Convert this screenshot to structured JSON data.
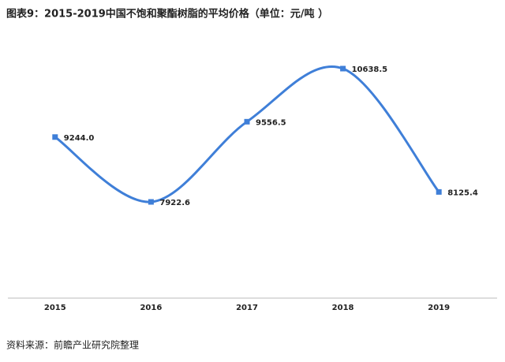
{
  "chart_data": {
    "type": "line",
    "title": "图表9：2015-2019中国不饱和聚酯树脂的平均价格（单位：元/吨 ）",
    "categories": [
      "2015",
      "2016",
      "2017",
      "2018",
      "2019"
    ],
    "series": [
      {
        "name": "平均价格",
        "color": "#3f7fd8",
        "values": [
          9244.0,
          7922.6,
          9556.5,
          10638.5,
          8125.4
        ],
        "value_labels": [
          "9244.0",
          "7922.6",
          "9556.5",
          "10638.5",
          "8125.4"
        ]
      }
    ],
    "smooth": true,
    "source": "资料来源：前瞻产业研究院整理"
  }
}
